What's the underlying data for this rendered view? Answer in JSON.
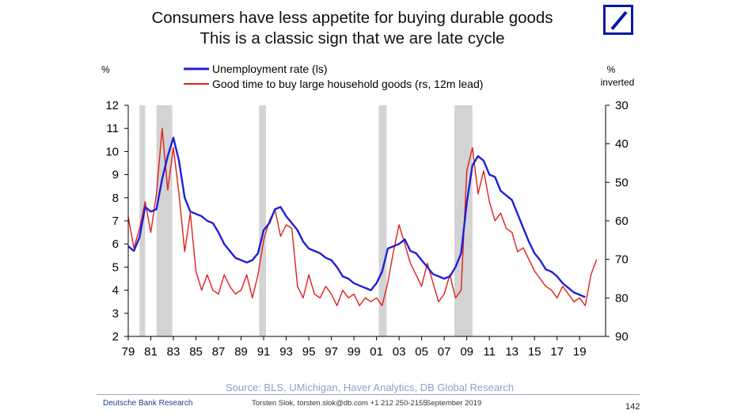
{
  "header": {
    "title_line1": "Consumers have less appetite for buying durable goods",
    "title_line2": "This is a classic sign that we are late cycle",
    "logo": "deutsche-bank-logo"
  },
  "chart_data": {
    "type": "line",
    "left_unit": "%",
    "right_unit_line1": "%",
    "right_unit_line2": "inverted",
    "left_axis": {
      "min": 2,
      "max": 12,
      "ticks": [
        "2",
        "3",
        "4",
        "5",
        "6",
        "7",
        "8",
        "9",
        "10",
        "11",
        "12"
      ]
    },
    "right_axis": {
      "min": 90,
      "max": 30,
      "inverted": true,
      "ticks": [
        "30",
        "40",
        "50",
        "60",
        "70",
        "80",
        "90"
      ]
    },
    "x_axis": {
      "min": 1979,
      "max": 2021.3,
      "tick_labels": [
        "79",
        "81",
        "83",
        "85",
        "87",
        "89",
        "91",
        "93",
        "95",
        "97",
        "99",
        "01",
        "03",
        "05",
        "07",
        "09",
        "11",
        "13",
        "15",
        "17",
        "19"
      ]
    },
    "recessions": [
      [
        1980.0,
        1980.5
      ],
      [
        1981.5,
        1982.9
      ],
      [
        1990.6,
        1991.2
      ],
      [
        2001.2,
        2001.9
      ],
      [
        2007.9,
        2009.5
      ]
    ],
    "legend": {
      "placement": "top-left",
      "entries": [
        "Unemployment rate (ls)",
        "Good time to buy large household goods (rs, 12m lead)"
      ]
    },
    "series": [
      {
        "name": "Unemployment rate (ls)",
        "axis": "left",
        "color": "#1f1fd6",
        "x": [
          1979.0,
          1979.5,
          1980.0,
          1980.5,
          1981.0,
          1981.5,
          1982.0,
          1982.5,
          1983.0,
          1983.5,
          1984.0,
          1984.5,
          1985.0,
          1985.5,
          1986.0,
          1986.5,
          1987.0,
          1987.5,
          1988.0,
          1988.5,
          1989.0,
          1989.5,
          1990.0,
          1990.5,
          1991.0,
          1991.5,
          1992.0,
          1992.5,
          1993.0,
          1993.5,
          1994.0,
          1994.5,
          1995.0,
          1995.5,
          1996.0,
          1996.5,
          1997.0,
          1997.5,
          1998.0,
          1998.5,
          1999.0,
          1999.5,
          2000.0,
          2000.5,
          2001.0,
          2001.5,
          2002.0,
          2002.5,
          2003.0,
          2003.5,
          2004.0,
          2004.5,
          2005.0,
          2005.5,
          2006.0,
          2006.5,
          2007.0,
          2007.5,
          2008.0,
          2008.5,
          2009.0,
          2009.5,
          2010.0,
          2010.5,
          2011.0,
          2011.5,
          2012.0,
          2012.5,
          2013.0,
          2013.5,
          2014.0,
          2014.5,
          2015.0,
          2015.5,
          2016.0,
          2016.5,
          2017.0,
          2017.5,
          2018.0,
          2018.5,
          2019.0,
          2019.5
        ],
        "values": [
          5.9,
          5.7,
          6.3,
          7.6,
          7.4,
          7.5,
          8.8,
          9.8,
          10.6,
          9.6,
          8.0,
          7.4,
          7.3,
          7.2,
          7.0,
          6.9,
          6.5,
          6.0,
          5.7,
          5.4,
          5.3,
          5.2,
          5.3,
          5.6,
          6.6,
          6.9,
          7.5,
          7.6,
          7.2,
          6.9,
          6.6,
          6.1,
          5.8,
          5.7,
          5.6,
          5.4,
          5.3,
          5.0,
          4.6,
          4.5,
          4.3,
          4.2,
          4.1,
          4.0,
          4.3,
          4.8,
          5.8,
          5.9,
          6.0,
          6.2,
          5.7,
          5.6,
          5.3,
          5.0,
          4.7,
          4.6,
          4.5,
          4.6,
          5.0,
          5.6,
          7.8,
          9.4,
          9.8,
          9.6,
          9.0,
          8.9,
          8.3,
          8.1,
          7.9,
          7.3,
          6.7,
          6.1,
          5.6,
          5.3,
          4.9,
          4.8,
          4.6,
          4.3,
          4.1,
          3.9,
          3.8,
          3.7
        ]
      },
      {
        "name": "Good time to buy large household goods (rs, 12m lead)",
        "axis": "right",
        "color": "#e0201a",
        "x": [
          1979.0,
          1979.5,
          1980.0,
          1980.5,
          1981.0,
          1981.5,
          1982.0,
          1982.5,
          1983.0,
          1983.5,
          1984.0,
          1984.5,
          1985.0,
          1985.5,
          1986.0,
          1986.5,
          1987.0,
          1987.5,
          1988.0,
          1988.5,
          1989.0,
          1989.5,
          1990.0,
          1990.5,
          1991.0,
          1991.5,
          1992.0,
          1992.5,
          1993.0,
          1993.5,
          1994.0,
          1994.5,
          1995.0,
          1995.5,
          1996.0,
          1996.5,
          1997.0,
          1997.5,
          1998.0,
          1998.5,
          1999.0,
          1999.5,
          2000.0,
          2000.5,
          2001.0,
          2001.5,
          2002.0,
          2002.5,
          2003.0,
          2003.5,
          2004.0,
          2004.5,
          2005.0,
          2005.5,
          2006.0,
          2006.5,
          2007.0,
          2007.5,
          2008.0,
          2008.5,
          2009.0,
          2009.5,
          2010.0,
          2010.5,
          2011.0,
          2011.5,
          2012.0,
          2012.5,
          2013.0,
          2013.5,
          2014.0,
          2014.5,
          2015.0,
          2015.5,
          2016.0,
          2016.5,
          2017.0,
          2017.5,
          2018.0,
          2018.5,
          2019.0,
          2019.5,
          2020.0,
          2020.5
        ],
        "values": [
          59,
          67,
          62,
          55,
          63,
          53,
          36,
          52,
          41,
          53,
          68,
          58,
          73,
          78,
          74,
          78,
          79,
          74,
          77,
          79,
          78,
          74,
          80,
          74,
          65,
          60,
          57,
          64,
          61,
          62,
          77,
          80,
          74,
          79,
          80,
          77,
          79,
          82,
          78,
          80,
          79,
          82,
          80,
          81,
          80,
          82,
          76,
          68,
          61,
          66,
          71,
          74,
          77,
          71,
          76,
          81,
          79,
          74,
          80,
          78,
          47,
          41,
          53,
          47,
          55,
          60,
          58,
          62,
          63,
          68,
          67,
          70,
          73,
          75,
          77,
          78,
          80,
          77,
          79,
          81,
          80,
          82,
          74,
          70
        ]
      }
    ]
  },
  "footer": {
    "source": "Source: BLS, UMichigan, Haver Analytics, DB Global Research",
    "brand": "Deutsche Bank Research",
    "author": "Torsten Slok, torsten.slok@db.com  +1 212 250-2155",
    "date": "September 2019",
    "page_number": "142"
  }
}
